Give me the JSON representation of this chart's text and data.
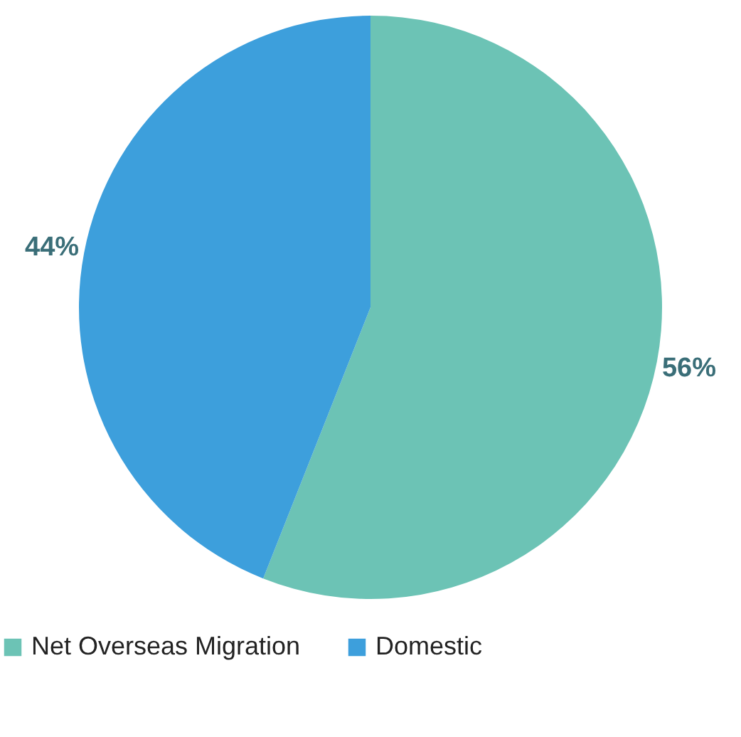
{
  "chart_data": {
    "type": "pie",
    "categories": [
      "Net Overseas Migration",
      "Domestic"
    ],
    "values": [
      56,
      44
    ],
    "colors": [
      "#6cc3b5",
      "#3d9fdc"
    ],
    "value_labels": [
      "56%",
      "44%"
    ],
    "legend": "bottom"
  }
}
